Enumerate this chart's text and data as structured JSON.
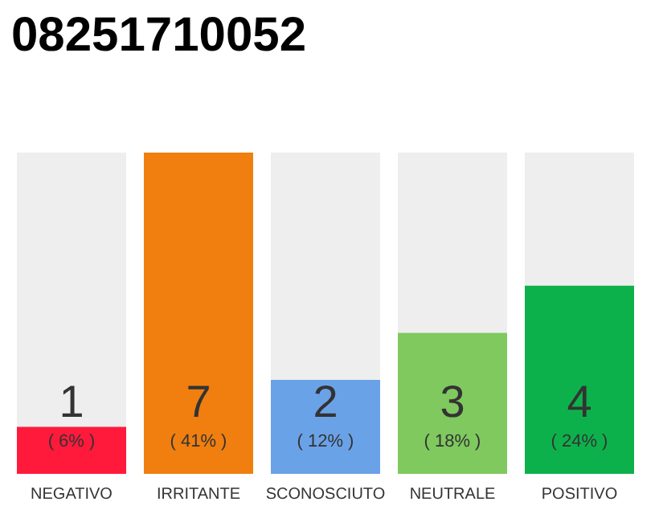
{
  "chart_data": {
    "type": "bar",
    "title": "08251710052",
    "categories": [
      "NEGATIVO",
      "IRRITANTE",
      "SCONOSCIUTO",
      "NEUTRALE",
      "POSITIVO"
    ],
    "values": [
      6,
      41,
      12,
      18,
      24
    ],
    "colors": [
      "#ff1a3c",
      "#f07f0f",
      "#6aa2e8",
      "#7fc95f",
      "#0db14b"
    ],
    "value_labels": [
      "( 6% )",
      "( 41% )",
      "( 12% )",
      "( 18% )",
      "( 24% )"
    ],
    "annotations": [
      "1",
      "7",
      "2",
      "3",
      "4"
    ],
    "grid": false
  }
}
